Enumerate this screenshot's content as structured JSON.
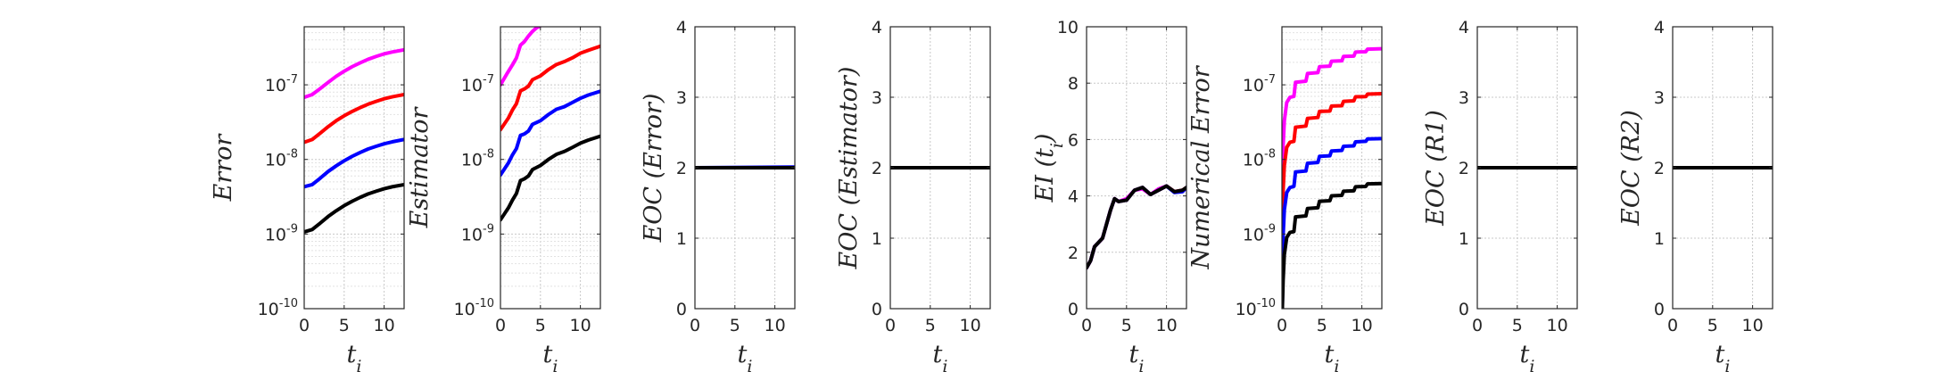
{
  "chart_data": [
    {
      "type": "line",
      "yscale": "log",
      "ylabel": "Error",
      "xlabel": "t_i",
      "xlim": [
        0,
        12.5
      ],
      "ylim": [
        1e-10,
        6e-07
      ],
      "xticks": [
        0,
        5,
        10
      ],
      "yticks": [
        1e-10,
        1e-09,
        1e-08,
        1e-07
      ],
      "ytick_labels": [
        "10",
        "10",
        "10",
        "10"
      ],
      "ytick_exponents": [
        "-10",
        "-9",
        "-8",
        "-7"
      ],
      "grid": true,
      "series": [
        {
          "color": "#ff00ff",
          "x": [
            0,
            1,
            2,
            3,
            4,
            5,
            6,
            7,
            8,
            9,
            10,
            11,
            12.5
          ],
          "y": [
            6.8e-08,
            7.4e-08,
            8.9e-08,
            1.08e-07,
            1.3e-07,
            1.52e-07,
            1.75e-07,
            1.97e-07,
            2.2e-07,
            2.4e-07,
            2.6e-07,
            2.75e-07,
            2.95e-07
          ]
        },
        {
          "color": "#ff0000",
          "x": [
            0,
            1,
            2,
            3,
            4,
            5,
            6,
            7,
            8,
            9,
            10,
            11,
            12.5
          ],
          "y": [
            1.7e-08,
            1.85e-08,
            2.25e-08,
            2.75e-08,
            3.3e-08,
            3.85e-08,
            4.4e-08,
            4.95e-08,
            5.5e-08,
            6e-08,
            6.5e-08,
            6.9e-08,
            7.4e-08
          ]
        },
        {
          "color": "#0000ff",
          "x": [
            0,
            1,
            2,
            3,
            4,
            5,
            6,
            7,
            8,
            9,
            10,
            11,
            12.5
          ],
          "y": [
            4.3e-09,
            4.6e-09,
            5.6e-09,
            6.9e-09,
            8.2e-09,
            9.6e-09,
            1.1e-08,
            1.24e-08,
            1.38e-08,
            1.5e-08,
            1.62e-08,
            1.72e-08,
            1.85e-08
          ]
        },
        {
          "color": "#000000",
          "x": [
            0,
            1,
            2,
            3,
            4,
            5,
            6,
            7,
            8,
            9,
            10,
            11,
            12.5
          ],
          "y": [
            1.07e-09,
            1.15e-09,
            1.4e-09,
            1.72e-09,
            2.05e-09,
            2.4e-09,
            2.75e-09,
            3.1e-09,
            3.45e-09,
            3.75e-09,
            4.05e-09,
            4.3e-09,
            4.6e-09
          ]
        }
      ]
    },
    {
      "type": "line",
      "yscale": "log",
      "ylabel": "Estimator",
      "xlabel": "t_i",
      "xlim": [
        0,
        12.5
      ],
      "ylim": [
        1e-10,
        6e-07
      ],
      "xticks": [
        0,
        5,
        10
      ],
      "yticks": [
        1e-10,
        1e-09,
        1e-08,
        1e-07
      ],
      "ytick_labels": [
        "10",
        "10",
        "10",
        "10"
      ],
      "ytick_exponents": [
        "-10",
        "-9",
        "-8",
        "-7"
      ],
      "grid": true,
      "series": [
        {
          "color": "#ff00ff",
          "x": [
            0,
            0.8,
            1.5,
            2,
            2.5,
            3,
            3.5,
            4,
            4.5,
            5
          ],
          "y": [
            1e-07,
            1.4e-07,
            1.85e-07,
            2.3e-07,
            3.4e-07,
            3.8e-07,
            4.5e-07,
            5.2e-07,
            5.8e-07,
            6.2e-07
          ]
        },
        {
          "color": "#ff0000",
          "x": [
            0,
            1,
            1.5,
            2,
            2.5,
            3,
            3.5,
            4,
            5,
            6,
            7,
            8,
            9,
            10,
            11,
            12.5
          ],
          "y": [
            2.5e-08,
            3.6e-08,
            4.6e-08,
            5.6e-08,
            8.3e-08,
            8.8e-08,
            9.6e-08,
            1.17e-07,
            1.32e-07,
            1.6e-07,
            1.87e-07,
            2.05e-07,
            2.3e-07,
            2.65e-07,
            2.9e-07,
            3.3e-07
          ]
        },
        {
          "color": "#0000ff",
          "x": [
            0,
            1,
            1.5,
            2,
            2.5,
            3,
            3.5,
            4,
            5,
            6,
            7,
            8,
            9,
            10,
            11,
            12.5
          ],
          "y": [
            6.2e-09,
            9e-09,
            1.15e-08,
            1.4e-08,
            2.1e-08,
            2.2e-08,
            2.4e-08,
            2.95e-08,
            3.3e-08,
            4e-08,
            4.7e-08,
            5.1e-08,
            5.8e-08,
            6.6e-08,
            7.3e-08,
            8.2e-08
          ]
        },
        {
          "color": "#000000",
          "x": [
            0,
            1,
            1.5,
            2,
            2.5,
            3,
            3.5,
            4,
            5,
            6,
            7,
            8,
            9,
            10,
            11,
            12.5
          ],
          "y": [
            1.55e-09,
            2.25e-09,
            2.85e-09,
            3.5e-09,
            5.2e-09,
            5.5e-09,
            6e-09,
            7.3e-09,
            8.3e-09,
            1e-08,
            1.17e-08,
            1.28e-08,
            1.45e-08,
            1.65e-08,
            1.82e-08,
            2.05e-08
          ]
        }
      ]
    },
    {
      "type": "line",
      "yscale": "linear",
      "ylabel": "EOC (Error)",
      "xlabel": "t_i",
      "xlim": [
        0,
        12.5
      ],
      "ylim": [
        0,
        4
      ],
      "xticks": [
        0,
        5,
        10
      ],
      "yticks": [
        0,
        1,
        2,
        3,
        4
      ],
      "grid": true,
      "series": [
        {
          "color": "#ff00ff",
          "x": [
            0,
            12.5
          ],
          "y": [
            2,
            2
          ]
        },
        {
          "color": "#ff0000",
          "x": [
            0,
            12.5
          ],
          "y": [
            2,
            2
          ]
        },
        {
          "color": "#0000ff",
          "x": [
            0,
            12.5
          ],
          "y": [
            2,
            2.01
          ]
        },
        {
          "color": "#000000",
          "x": [
            0,
            12.5
          ],
          "y": [
            2,
            2
          ]
        }
      ]
    },
    {
      "type": "line",
      "yscale": "linear",
      "ylabel": "EOC (Estimator)",
      "xlabel": "t_i",
      "xlim": [
        0,
        12.5
      ],
      "ylim": [
        0,
        4
      ],
      "xticks": [
        0,
        5,
        10
      ],
      "yticks": [
        0,
        1,
        2,
        3,
        4
      ],
      "grid": true,
      "series": [
        {
          "color": "#ff00ff",
          "x": [
            0,
            12.5
          ],
          "y": [
            2,
            2
          ]
        },
        {
          "color": "#ff0000",
          "x": [
            0,
            12.5
          ],
          "y": [
            2,
            2
          ]
        },
        {
          "color": "#0000ff",
          "x": [
            0,
            12.5
          ],
          "y": [
            2,
            2
          ]
        },
        {
          "color": "#000000",
          "x": [
            0,
            12.5
          ],
          "y": [
            2,
            2
          ]
        }
      ]
    },
    {
      "type": "line",
      "yscale": "linear",
      "ylabel": "EI (t_i)",
      "xlabel": "t_i",
      "xlim": [
        0,
        12.5
      ],
      "ylim": [
        0,
        10
      ],
      "xticks": [
        0,
        5,
        10
      ],
      "yticks": [
        0,
        2,
        4,
        6,
        8,
        10
      ],
      "grid": true,
      "series": [
        {
          "color": "#ff00ff",
          "x": [
            0,
            0.5,
            1,
            1.5,
            2,
            2.5,
            3,
            3.5,
            4,
            5,
            6,
            7,
            8,
            9,
            10,
            11,
            12,
            12.5
          ],
          "y": [
            1.45,
            1.7,
            2.2,
            2.35,
            2.5,
            3,
            3.5,
            3.9,
            3.8,
            3.9,
            4.2,
            4.25,
            4.05,
            4.25,
            4.35,
            4.15,
            4.2,
            4.25
          ]
        },
        {
          "color": "#ff0000",
          "x": [
            0,
            0.5,
            1,
            1.5,
            2,
            2.5,
            3,
            3.5,
            4,
            5,
            6,
            7,
            8,
            9,
            10,
            11,
            12,
            12.5
          ],
          "y": [
            1.45,
            1.7,
            2.2,
            2.35,
            2.5,
            3,
            3.5,
            3.9,
            3.8,
            3.85,
            4.2,
            4.3,
            4.05,
            4.2,
            4.35,
            4.15,
            4.2,
            4.3
          ]
        },
        {
          "color": "#0000ff",
          "x": [
            0,
            0.5,
            1,
            1.5,
            2,
            2.5,
            3,
            3.5,
            4,
            5,
            6,
            7,
            8,
            9,
            10,
            11,
            12,
            12.5
          ],
          "y": [
            1.45,
            1.7,
            2.2,
            2.35,
            2.5,
            3,
            3.5,
            3.9,
            3.8,
            3.85,
            4.2,
            4.3,
            4.05,
            4.2,
            4.35,
            4.12,
            4.15,
            4.3
          ]
        },
        {
          "color": "#000000",
          "x": [
            0,
            0.5,
            1,
            1.5,
            2,
            2.5,
            3,
            3.5,
            4,
            5,
            6,
            7,
            8,
            9,
            10,
            11,
            12,
            12.5
          ],
          "y": [
            1.45,
            1.7,
            2.2,
            2.35,
            2.5,
            3,
            3.5,
            3.9,
            3.8,
            3.85,
            4.2,
            4.3,
            4.05,
            4.2,
            4.35,
            4.15,
            4.2,
            4.3
          ]
        }
      ]
    },
    {
      "type": "line",
      "yscale": "log",
      "ylabel": "Numerical Error",
      "xlabel": "t_i",
      "xlim": [
        0,
        12.5
      ],
      "ylim": [
        1e-10,
        6e-07
      ],
      "xticks": [
        0,
        5,
        10
      ],
      "yticks": [
        1e-10,
        1e-09,
        1e-08,
        1e-07
      ],
      "ytick_labels": [
        "10",
        "10",
        "10",
        "10"
      ],
      "ytick_exponents": [
        "-10",
        "-9",
        "-8",
        "-7"
      ],
      "grid": true,
      "series": [
        {
          "color": "#ff00ff",
          "x": [
            0.05,
            0.15,
            0.3,
            0.6,
            1,
            1.5,
            1.7,
            3,
            3.2,
            4.5,
            4.7,
            6,
            6.2,
            7.5,
            7.7,
            9,
            9.2,
            10.5,
            10.7,
            12.5
          ],
          "y": [
            1.2e-09,
            1.5e-08,
            3.3e-08,
            5.8e-08,
            6.8e-08,
            7e-08,
            1.08e-07,
            1.12e-07,
            1.42e-07,
            1.46e-07,
            1.75e-07,
            1.78e-07,
            2.07e-07,
            2.1e-07,
            2.4e-07,
            2.43e-07,
            2.75e-07,
            2.78e-07,
            3e-07,
            3.05e-07
          ]
        },
        {
          "color": "#ff0000",
          "x": [
            0.05,
            0.15,
            0.3,
            0.6,
            1,
            1.5,
            1.7,
            3,
            3.2,
            4.5,
            4.7,
            6,
            6.2,
            7.5,
            7.7,
            9,
            9.2,
            10.5,
            10.7,
            12.5
          ],
          "y": [
            3e-10,
            3.8e-09,
            8.3e-09,
            1.45e-08,
            1.7e-08,
            1.75e-08,
            2.7e-08,
            2.8e-08,
            3.55e-08,
            3.65e-08,
            4.4e-08,
            4.45e-08,
            5.2e-08,
            5.25e-08,
            6e-08,
            6.1e-08,
            6.9e-08,
            6.95e-08,
            7.5e-08,
            7.6e-08
          ]
        },
        {
          "color": "#0000ff",
          "x": [
            0.05,
            0.15,
            0.3,
            0.6,
            1,
            1.5,
            1.7,
            3,
            3.2,
            4.5,
            4.7,
            6,
            6.2,
            7.5,
            7.7,
            9,
            9.2,
            10.5,
            10.7,
            12.5
          ],
          "y": [
            1e-10,
            9.5e-10,
            2.1e-09,
            3.6e-09,
            4.2e-09,
            4.35e-09,
            6.8e-09,
            7e-09,
            8.9e-09,
            9.1e-09,
            1.1e-08,
            1.12e-08,
            1.3e-08,
            1.32e-08,
            1.5e-08,
            1.52e-08,
            1.72e-08,
            1.75e-08,
            1.88e-08,
            1.9e-08
          ]
        },
        {
          "color": "#000000",
          "x": [
            0.05,
            0.15,
            0.3,
            0.6,
            1,
            1.5,
            1.7,
            3,
            3.2,
            4.5,
            4.7,
            6,
            6.2,
            7.5,
            7.7,
            9,
            9.2,
            10.5,
            10.7,
            12.5
          ],
          "y": [
            1e-10,
            2.4e-10,
            5.3e-10,
            9e-10,
            1.05e-09,
            1.08e-09,
            1.7e-09,
            1.75e-09,
            2.2e-09,
            2.25e-09,
            2.75e-09,
            2.8e-09,
            3.25e-09,
            3.3e-09,
            3.75e-09,
            3.8e-09,
            4.3e-09,
            4.35e-09,
            4.7e-09,
            4.75e-09
          ]
        }
      ]
    },
    {
      "type": "line",
      "yscale": "linear",
      "ylabel": "EOC (R1)",
      "xlabel": "t_i",
      "xlim": [
        0,
        12.5
      ],
      "ylim": [
        0,
        4
      ],
      "xticks": [
        0,
        5,
        10
      ],
      "yticks": [
        0,
        1,
        2,
        3,
        4
      ],
      "grid": true,
      "series": [
        {
          "color": "#ff00ff",
          "x": [
            0,
            12.5
          ],
          "y": [
            2,
            2
          ]
        },
        {
          "color": "#ff0000",
          "x": [
            0,
            12.5
          ],
          "y": [
            2,
            2
          ]
        },
        {
          "color": "#0000ff",
          "x": [
            0,
            12.5
          ],
          "y": [
            2,
            2
          ]
        },
        {
          "color": "#000000",
          "x": [
            0,
            12.5
          ],
          "y": [
            2,
            2
          ]
        }
      ]
    },
    {
      "type": "line",
      "yscale": "linear",
      "ylabel": "EOC (R2)",
      "xlabel": "t_i",
      "xlim": [
        0,
        12.5
      ],
      "ylim": [
        0,
        4
      ],
      "xticks": [
        0,
        5,
        10
      ],
      "yticks": [
        0,
        1,
        2,
        3,
        4
      ],
      "grid": true,
      "series": [
        {
          "color": "#ff00ff",
          "x": [
            0,
            12.5
          ],
          "y": [
            2,
            2
          ]
        },
        {
          "color": "#ff0000",
          "x": [
            0,
            12.5
          ],
          "y": [
            2,
            2
          ]
        },
        {
          "color": "#0000ff",
          "x": [
            0,
            12.5
          ],
          "y": [
            2,
            2
          ]
        },
        {
          "color": "#000000",
          "x": [
            0,
            12.5
          ],
          "y": [
            2,
            2
          ]
        }
      ]
    }
  ]
}
